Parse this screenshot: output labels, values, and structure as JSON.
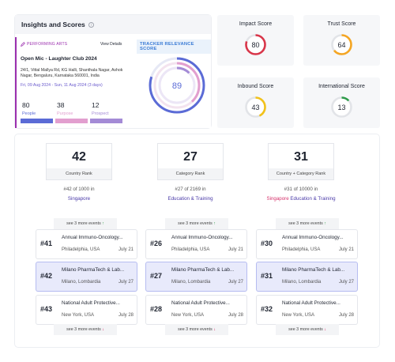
{
  "insights": {
    "title": "Insights and Scores",
    "info_glyph": "i",
    "event": {
      "category": "PERFORMING ARTS",
      "view_details": "View Details",
      "tracker_label": "TRACKER RELEVANCE SCORE",
      "name": "Open Mic - Laughter Club 2024",
      "address": "24/1, Vittal Mallya Rd, KG Halli, Shanthala Nagar, Ashok Nagar, Bengaluru, Karnataka 560001, India",
      "dates": "Fri, 09 Aug 2024 - Sun, 11 Aug 2024 (3 days)",
      "relevance_score": "89",
      "stats": [
        {
          "value": "80",
          "label": "People",
          "color": "#5b6bd6"
        },
        {
          "value": "38",
          "label": "Purpose",
          "color": "#e29fcf"
        },
        {
          "value": "12",
          "label": "Prospect",
          "color": "#a48bd6"
        }
      ]
    }
  },
  "scores": [
    {
      "title": "Impact Score",
      "value": "80",
      "color": "#d9364a"
    },
    {
      "title": "Trust Score",
      "value": "64",
      "color": "#f5a623"
    },
    {
      "title": "Inbound Score",
      "value": "43",
      "color": "#f2c21a"
    },
    {
      "title": "International Score",
      "value": "13",
      "color": "#2e9b4a"
    }
  ],
  "ranks": [
    {
      "value": "42",
      "label": "Country Rank",
      "of_text": "#42 of 1000 in",
      "where": "Singapore",
      "where_extra": "",
      "see_more_top": "see 3 more events",
      "see_more_bottom": "see 3 more events",
      "events": [
        {
          "rank": "#41",
          "name": "Annual Immuno-Oncology...",
          "location": "Philadelphia, USA",
          "date": "July 21"
        },
        {
          "rank": "#42",
          "name": "Milano PharmaTech & Lab...",
          "location": "Milano, Lombardia",
          "date": "July 27"
        },
        {
          "rank": "#43",
          "name": "National Adult Protective...",
          "location": "New York, USA",
          "date": "July 28"
        }
      ]
    },
    {
      "value": "27",
      "label": "Category Rank",
      "of_text": "#27 of 2169 in",
      "where": "Education & Training",
      "where_extra": "",
      "see_more_top": "see 3 more events",
      "see_more_bottom": "see 3 more events",
      "events": [
        {
          "rank": "#26",
          "name": "Annual Immuno-Oncology...",
          "location": "Philadelphia, USA",
          "date": "July 21"
        },
        {
          "rank": "#27",
          "name": "Milano PharmaTech & Lab...",
          "location": "Milano, Lombardia",
          "date": "July 27"
        },
        {
          "rank": "#28",
          "name": "National Adult Protective...",
          "location": "New York, USA",
          "date": "July 28"
        }
      ]
    },
    {
      "value": "31",
      "label": "Country + Category Rank",
      "of_text": "#31 of 10000 in",
      "where": "Singapore",
      "where_extra": " Education & Training",
      "see_more_top": "see 3 more events",
      "see_more_bottom": "see 3 more events",
      "events": [
        {
          "rank": "#30",
          "name": "Annual Immuno-Oncology...",
          "location": "Philadelphia, USA",
          "date": "July 21"
        },
        {
          "rank": "#31",
          "name": "Milano PharmaTech & Lab...",
          "location": "Milano, Lombardia",
          "date": "July 27"
        },
        {
          "rank": "#32",
          "name": "National Adult Protective...",
          "location": "New York, USA",
          "date": "July 28"
        }
      ]
    }
  ]
}
